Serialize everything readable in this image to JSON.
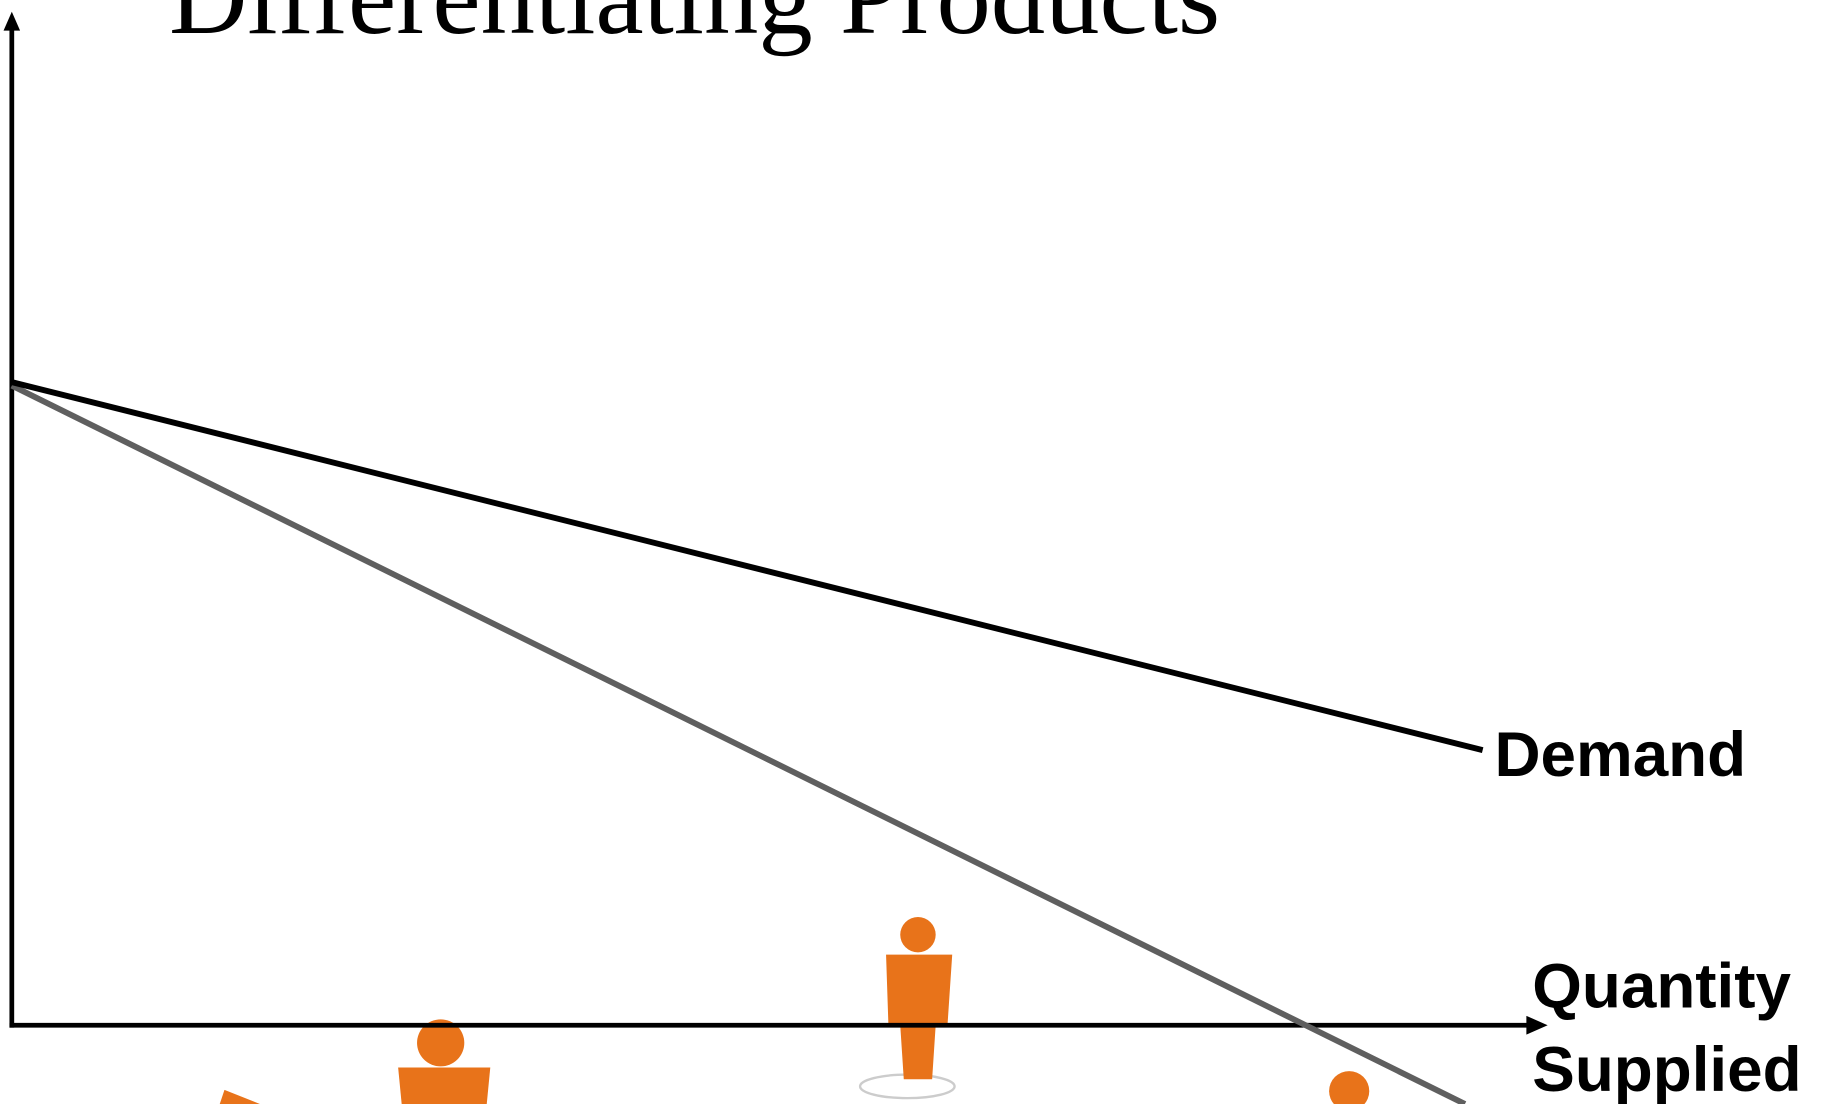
{
  "header": {
    "title": "Differentiating Products"
  },
  "curves": {
    "demand": {
      "label": "Demand"
    }
  },
  "axes": {
    "x": {
      "label_lines": [
        "Quantity",
        "Supplied"
      ]
    }
  }
}
